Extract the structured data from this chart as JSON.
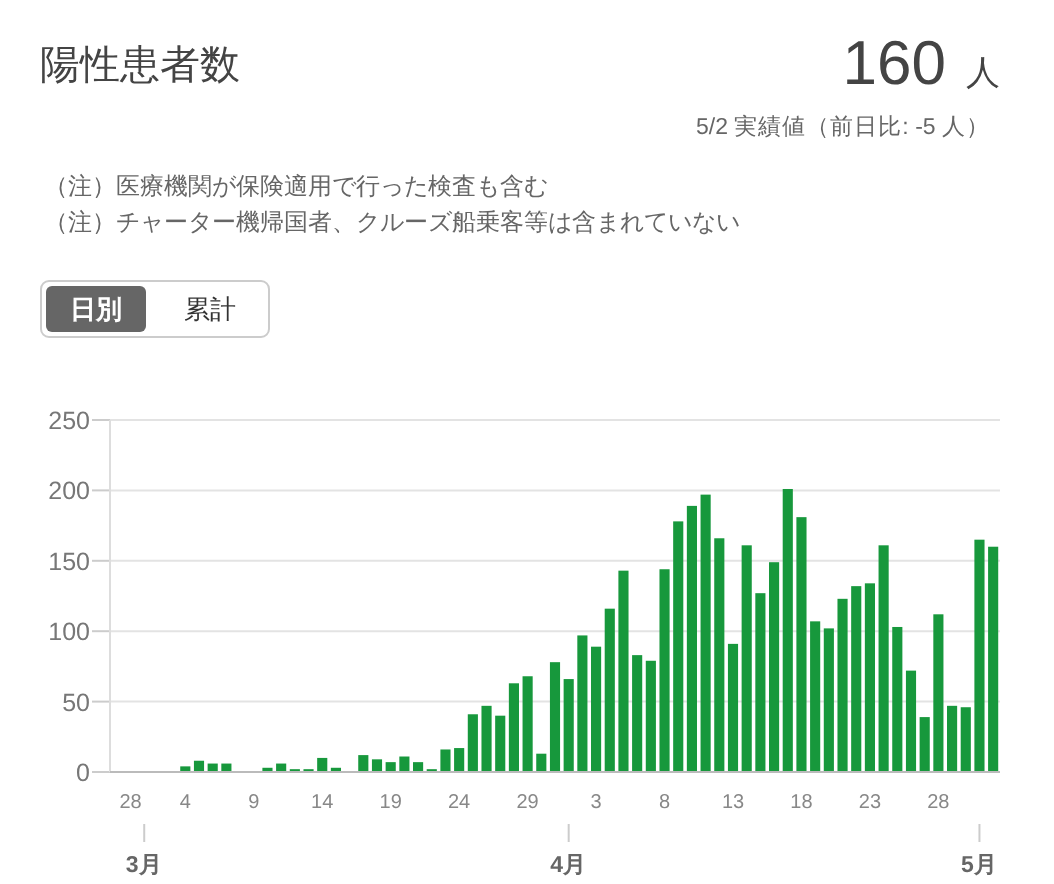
{
  "chart_data": {
    "type": "bar",
    "title": "陽性患者数",
    "subtitle": "5/2 実績値（前日比: -5 人）",
    "annotations": [
      "160 人",
      "（注）医療機関が保険適用で行った検査も含む",
      "（注）チャーター機帰国者、クルーズ船乗客等は含まれていない",
      "日別",
      "累計"
    ],
    "x": [
      "--03-04",
      "--03-05",
      "--03-06",
      "--03-07",
      "--03-10",
      "--03-11",
      "--03-12",
      "--03-13",
      "--03-14",
      "--03-15",
      "--03-17",
      "--03-18",
      "--03-19",
      "--03-20",
      "--03-21",
      "--03-22",
      "--03-23",
      "--03-24",
      "--03-25",
      "--03-26",
      "--03-27",
      "--03-28",
      "--03-29",
      "--03-30",
      "--03-31",
      "--04-01",
      "--04-02",
      "--04-03",
      "--04-04",
      "--04-05",
      "--04-06",
      "--04-07",
      "--04-08",
      "--04-09",
      "--04-10",
      "--04-11",
      "--04-12",
      "--04-13",
      "--04-14",
      "--04-15",
      "--04-16",
      "--04-17",
      "--04-18",
      "--04-19",
      "--04-20",
      "--04-21",
      "--04-22",
      "--04-23",
      "--04-24",
      "--04-25",
      "--04-26",
      "--04-27",
      "--04-28",
      "--04-29",
      "--04-30",
      "--05-01",
      "--05-02"
    ],
    "values": [
      4,
      8,
      6,
      6,
      3,
      6,
      2,
      2,
      10,
      3,
      12,
      9,
      7,
      11,
      7,
      2,
      16,
      17,
      41,
      47,
      40,
      63,
      68,
      13,
      78,
      66,
      97,
      89,
      116,
      143,
      83,
      79,
      144,
      178,
      189,
      197,
      166,
      91,
      161,
      127,
      149,
      201,
      181,
      107,
      102,
      123,
      132,
      134,
      161,
      103,
      72,
      39,
      112,
      47,
      46,
      165,
      160
    ],
    "color": "#17983c",
    "xlim": [
      "--02-26T12:00",
      "--05-02T12:00"
    ],
    "xticks": [
      {
        "value": "--02-28",
        "label": "28"
      },
      {
        "value": "--03-04",
        "label": "4"
      },
      {
        "value": "--03-09",
        "label": "9"
      },
      {
        "value": "--03-14",
        "label": "14"
      },
      {
        "value": "--03-19",
        "label": "19"
      },
      {
        "value": "--03-24",
        "label": "24"
      },
      {
        "value": "--03-29",
        "label": "29"
      },
      {
        "value": "--04-03",
        "label": "3"
      },
      {
        "value": "--04-08",
        "label": "8"
      },
      {
        "value": "--04-13",
        "label": "13"
      },
      {
        "value": "--04-18",
        "label": "18"
      },
      {
        "value": "--04-23",
        "label": "23"
      },
      {
        "value": "--04-28",
        "label": "28"
      }
    ],
    "x2lim": [
      "--02-26T12:00",
      "--05-02T12:00"
    ],
    "x2ticks": [
      {
        "value": "--03-01",
        "label": "3月"
      },
      {
        "value": "--04-01",
        "label": "4月"
      },
      {
        "value": "--05-01",
        "label": "5月"
      }
    ],
    "ylim": [
      0,
      250
    ],
    "yticks": [
      0,
      50,
      100,
      150,
      200,
      250
    ],
    "grid": "y"
  }
}
